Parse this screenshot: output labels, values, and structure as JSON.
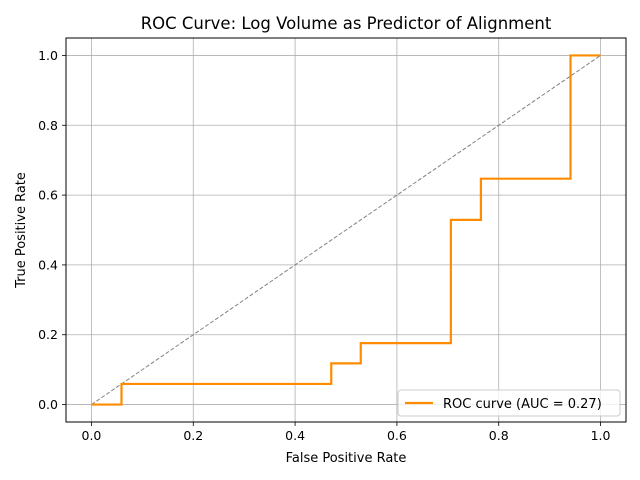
{
  "chart_data": {
    "type": "line",
    "title": "ROC Curve: Log Volume as Predictor of Alignment",
    "xlabel": "False Positive Rate",
    "ylabel": "True Positive Rate",
    "xlim": [
      -0.05,
      1.05
    ],
    "ylim": [
      -0.05,
      1.05
    ],
    "xticks": [
      0.0,
      0.2,
      0.4,
      0.6,
      0.8,
      1.0
    ],
    "yticks": [
      0.0,
      0.2,
      0.4,
      0.6,
      0.8,
      1.0
    ],
    "xtick_labels": [
      "0.0",
      "0.2",
      "0.4",
      "0.6",
      "0.8",
      "1.0"
    ],
    "ytick_labels": [
      "0.0",
      "0.2",
      "0.4",
      "0.6",
      "0.8",
      "1.0"
    ],
    "grid": true,
    "legend_position": "bottom-right",
    "series": [
      {
        "name": "ROC curve (AUC = 0.27)",
        "color": "#ff8c00",
        "style": "solid",
        "x": [
          0.0,
          0.059,
          0.059,
          0.471,
          0.471,
          0.529,
          0.529,
          0.706,
          0.706,
          0.765,
          0.765,
          0.941,
          0.941,
          1.0
        ],
        "y": [
          0.0,
          0.0,
          0.059,
          0.059,
          0.118,
          0.118,
          0.176,
          0.176,
          0.529,
          0.529,
          0.647,
          0.647,
          1.0,
          1.0
        ]
      },
      {
        "color": "#808080",
        "style": "dashed",
        "x": [
          0.0,
          1.0
        ],
        "y": [
          0.0,
          1.0
        ]
      }
    ]
  }
}
